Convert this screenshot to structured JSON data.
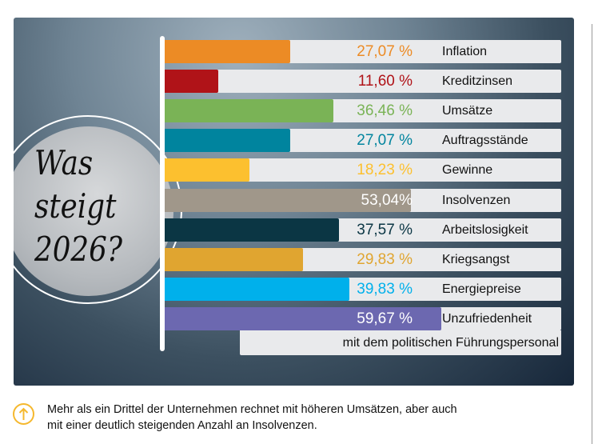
{
  "chart_data": {
    "type": "bar",
    "orientation": "horizontal",
    "title": "Was steigt 2026?",
    "title_lines": [
      "Was",
      "steigt",
      "2026?"
    ],
    "categories": [
      "Inflation",
      "Kreditzinsen",
      "Umsätze",
      "Auftragsstände",
      "Gewinne",
      "Insolvenzen",
      "Arbeitslosigkeit",
      "Kriegsangst",
      "Energiepreise",
      "Unzufriedenheit"
    ],
    "values": [
      27.07,
      11.6,
      36.46,
      27.07,
      18.23,
      53.04,
      37.57,
      29.83,
      39.83,
      59.67
    ],
    "value_labels": [
      "27,07 %",
      "11,60 %",
      "36,46 %",
      "27,07 %",
      "18,23 %",
      "53,04%",
      "37,57 %",
      "29,83 %",
      "39,83 %",
      "59,67 %"
    ],
    "colors": [
      "#ec8b25",
      "#b01318",
      "#7ab356",
      "#00849e",
      "#fcc02f",
      "#a0978a",
      "#0b3644",
      "#e0a530",
      "#00b0eb",
      "#6c68b0"
    ],
    "value_label_colors": [
      "#ec8b25",
      "#b01318",
      "#7ab356",
      "#00849e",
      "#fcc02f",
      "#ffffff",
      "#0b3644",
      "#e0a530",
      "#00b0eb",
      "#ffffff"
    ],
    "label_continuation": "mit dem politischen Führungspersonal",
    "xlim": [
      0,
      85
    ]
  },
  "note": {
    "icon": "arrow-up-circle-icon",
    "text_lines": [
      "Mehr als ein Drittel der Unternehmen rechnet mit höheren Umsätzen, aber auch",
      "mit einer deutlich steigenden Anzahl an Insolvenzen."
    ]
  }
}
